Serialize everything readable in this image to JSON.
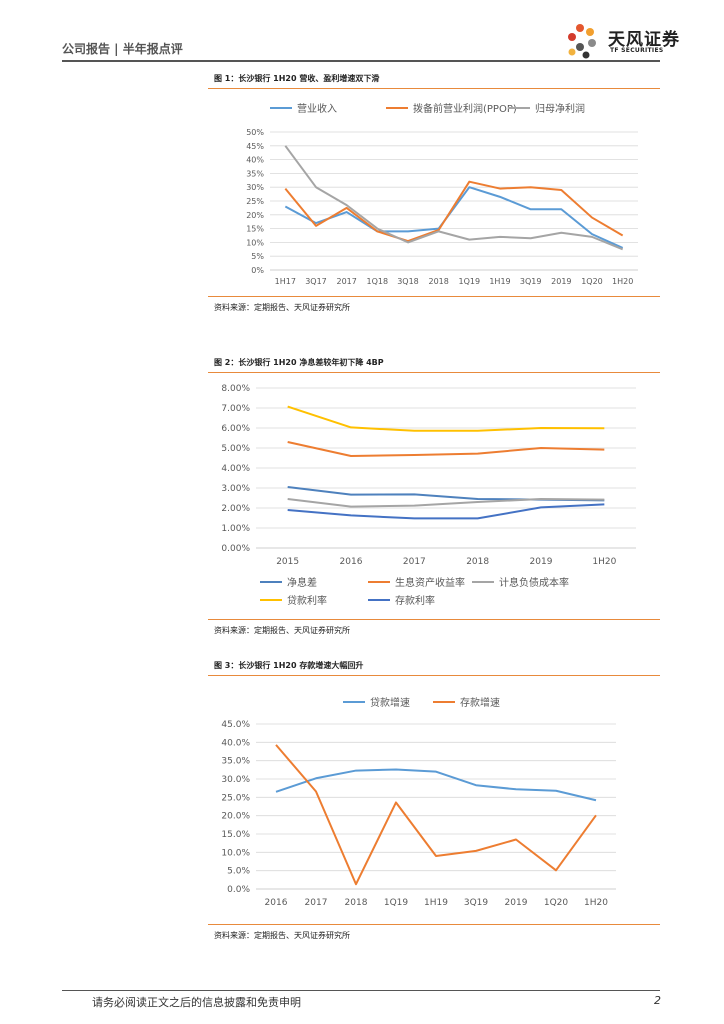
{
  "header": {
    "left_text": "公司报告 | 半年报点评",
    "brand_name": "天风证券",
    "brand_sub": "TF SECURITIES"
  },
  "figures": [
    {
      "title": "图 1：长沙银行 1H20 营收、盈利增速双下滑",
      "source": "资料来源：定期报告、天风证券研究所"
    },
    {
      "title": "图 2：长沙银行 1H20 净息差较年初下降 4BP",
      "source": "资料来源：定期报告、天风证券研究所"
    },
    {
      "title": "图 3：长沙银行 1H20 存款增速大幅回升",
      "source": "资料来源：定期报告、天风证券研究所"
    }
  ],
  "chart_data": [
    {
      "type": "line",
      "title": "",
      "categories": [
        "1H17",
        "3Q17",
        "2017",
        "1Q18",
        "3Q18",
        "2018",
        "1Q19",
        "1H19",
        "3Q19",
        "2019",
        "1Q20",
        "1H20"
      ],
      "series": [
        {
          "name": "营业收入",
          "color": "#5b9bd5",
          "values": [
            23,
            17,
            21,
            14,
            14,
            15,
            30,
            26.5,
            22,
            22,
            13,
            8
          ]
        },
        {
          "name": "拨备前营业利润(PPOP)",
          "color": "#ed7d31",
          "values": [
            29.5,
            16,
            22.5,
            14,
            10.5,
            14.5,
            32,
            29.5,
            30,
            29,
            19,
            12.5
          ]
        },
        {
          "name": "归母净利润",
          "color": "#a5a5a5",
          "values": [
            45,
            30,
            23.5,
            15,
            10,
            14,
            11,
            12,
            11.5,
            13.5,
            12,
            7.5
          ]
        }
      ],
      "y_ticks": [
        "0%",
        "5%",
        "10%",
        "15%",
        "20%",
        "25%",
        "30%",
        "35%",
        "40%",
        "45%",
        "50%"
      ],
      "ylim": [
        0,
        50
      ],
      "legend": "top",
      "grid": true
    },
    {
      "type": "line",
      "title": "",
      "categories": [
        "2015",
        "2016",
        "2017",
        "2018",
        "2019",
        "1H20"
      ],
      "series": [
        {
          "name": "净息差",
          "color": "#4e81bd",
          "values": [
            3.05,
            2.67,
            2.68,
            2.45,
            2.42,
            2.38
          ]
        },
        {
          "name": "生息资产收益率",
          "color": "#ed7d31",
          "values": [
            5.3,
            4.6,
            4.65,
            4.72,
            5.0,
            4.92
          ]
        },
        {
          "name": "计息负债成本率",
          "color": "#a5a5a5",
          "values": [
            2.45,
            2.07,
            2.12,
            2.3,
            2.45,
            2.42
          ]
        },
        {
          "name": "贷款利率",
          "color": "#ffc000",
          "values": [
            7.07,
            6.03,
            5.86,
            5.86,
            6.0,
            5.99
          ]
        },
        {
          "name": "存款利率",
          "color": "#4472c4",
          "values": [
            1.9,
            1.63,
            1.48,
            1.48,
            2.03,
            2.18
          ]
        }
      ],
      "y_ticks": [
        "0.00%",
        "1.00%",
        "2.00%",
        "3.00%",
        "4.00%",
        "5.00%",
        "6.00%",
        "7.00%",
        "8.00%"
      ],
      "ylim": [
        0,
        8
      ],
      "legend": "bottom",
      "grid": true
    },
    {
      "type": "line",
      "title": "",
      "categories": [
        "2016",
        "2017",
        "2018",
        "1Q19",
        "1H19",
        "3Q19",
        "2019",
        "1Q20",
        "1H20"
      ],
      "series": [
        {
          "name": "贷款增速",
          "color": "#5b9bd5",
          "values": [
            26.5,
            30.2,
            32.3,
            32.6,
            32.0,
            28.3,
            27.2,
            26.8,
            24.2
          ]
        },
        {
          "name": "存款增速",
          "color": "#ed7d31",
          "values": [
            39.3,
            26.6,
            1.3,
            23.6,
            9.0,
            10.4,
            13.5,
            5.1,
            20.1
          ]
        }
      ],
      "y_ticks": [
        "0.0%",
        "5.0%",
        "10.0%",
        "15.0%",
        "20.0%",
        "25.0%",
        "30.0%",
        "35.0%",
        "40.0%",
        "45.0%"
      ],
      "ylim": [
        0,
        45
      ],
      "legend": "top",
      "grid": true
    }
  ],
  "footer": {
    "disclaimer": "请务必阅读正文之后的信息披露和免责申明",
    "page": "2"
  },
  "colors": {
    "accent_rule": "#e88a3c",
    "grid": "#d9d9d9"
  }
}
